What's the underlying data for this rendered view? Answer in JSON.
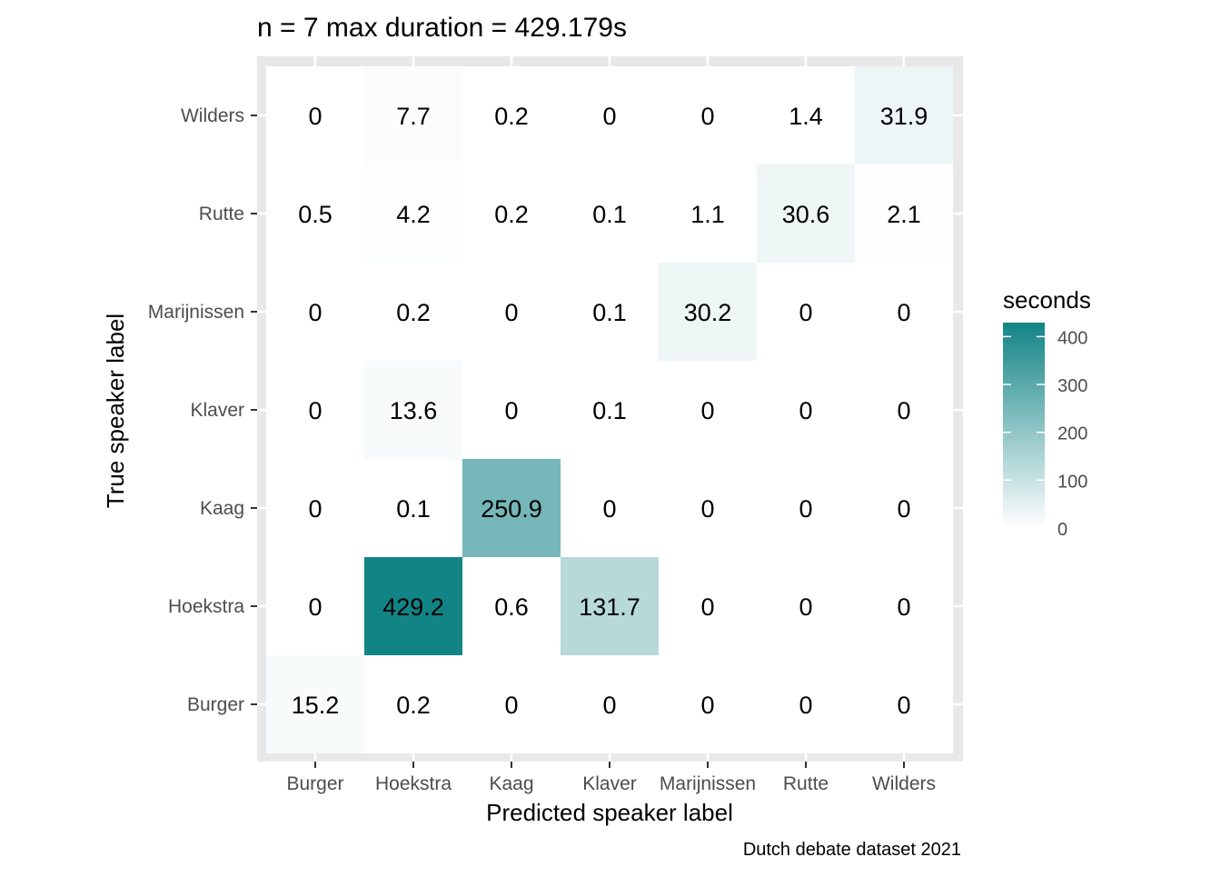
{
  "chart_data": {
    "type": "heatmap",
    "title": "n = 7 max duration = 429.179s",
    "xlabel": "Predicted speaker label",
    "ylabel": "True speaker label",
    "caption": "Dutch debate dataset 2021",
    "x_categories": [
      "Burger",
      "Hoekstra",
      "Kaag",
      "Klaver",
      "Marijnissen",
      "Rutte",
      "Wilders"
    ],
    "y_categories": [
      "Burger",
      "Hoekstra",
      "Kaag",
      "Klaver",
      "Marijnissen",
      "Rutte",
      "Wilders"
    ],
    "values": [
      [
        15.2,
        0.2,
        0,
        0,
        0,
        0,
        0
      ],
      [
        0,
        429.2,
        0.6,
        131.7,
        0,
        0,
        0
      ],
      [
        0,
        0.1,
        250.9,
        0,
        0,
        0,
        0
      ],
      [
        0,
        13.6,
        0,
        0.1,
        0,
        0,
        0
      ],
      [
        0,
        0.2,
        0,
        0.1,
        30.2,
        0,
        0
      ],
      [
        0.5,
        4.2,
        0.2,
        0.1,
        1.1,
        30.6,
        2.1
      ],
      [
        0,
        7.7,
        0.2,
        0,
        0,
        1.4,
        31.9
      ]
    ],
    "legend": {
      "title": "seconds",
      "ticks": [
        0,
        100,
        200,
        300,
        400
      ],
      "range": [
        0,
        429.179
      ],
      "low_color": "#ffffff",
      "high_color": "#138486"
    },
    "panel_background": "#e8e8e8",
    "grid_color": "#ffffff"
  }
}
